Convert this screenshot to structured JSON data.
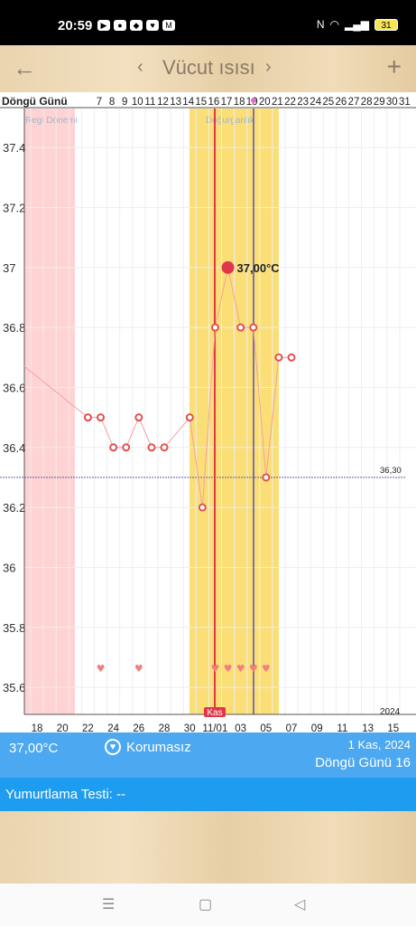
{
  "status": {
    "time": "20:59",
    "battery": "31"
  },
  "header": {
    "title": "Vücut ısısı",
    "back_icon": "arrow-left-icon",
    "add_icon": "plus-icon"
  },
  "chart_data": {
    "type": "line",
    "cycle_label": "Döngü Günü",
    "cycle_days": [
      "7",
      "8",
      "9",
      "10",
      "11",
      "12",
      "13",
      "14",
      "15",
      "16",
      "17",
      "18",
      "19",
      "20",
      "21",
      "22",
      "23",
      "24",
      "25",
      "26",
      "27",
      "28",
      "29",
      "30",
      "31"
    ],
    "y_ticks": [
      "37.4",
      "37.2",
      "37",
      "36.8",
      "36.6",
      "36.4",
      "36.2",
      "36",
      "35.8",
      "35.6"
    ],
    "ylim": [
      35.54,
      37.5
    ],
    "x_ticks": [
      "18",
      "20",
      "22",
      "24",
      "26",
      "28",
      "30",
      "11/01",
      "03",
      "05",
      "07",
      "09",
      "11",
      "13",
      "15"
    ],
    "period_label": "Regl Dönemi",
    "fertile_label": "Doğurganlık",
    "month_label": "Kas",
    "year_label": "2024",
    "coverline": 36.3,
    "coverline_label": "36,30",
    "selected_label": "37,00°C",
    "points": [
      {
        "d": 22,
        "t": 36.5
      },
      {
        "d": 23,
        "t": 36.5
      },
      {
        "d": 24,
        "t": 36.4
      },
      {
        "d": 25,
        "t": 36.4
      },
      {
        "d": 26,
        "t": 36.5
      },
      {
        "d": 27,
        "t": 36.4
      },
      {
        "d": 28,
        "t": 36.4
      },
      {
        "d": 30,
        "t": 36.5
      },
      {
        "d": 31,
        "t": 36.2
      },
      {
        "d": 32,
        "t": 36.8
      },
      {
        "d": 33,
        "t": 37.0
      },
      {
        "d": 34,
        "t": 36.8
      },
      {
        "d": 35,
        "t": 36.8
      },
      {
        "d": 36,
        "t": 36.3
      },
      {
        "d": 37,
        "t": 36.7
      },
      {
        "d": 38,
        "t": 36.7
      }
    ],
    "hearts": [
      23,
      26,
      32,
      33,
      34,
      35,
      36
    ],
    "colors": {
      "period": "#ffd3d3",
      "fertile": "#fbdf76",
      "line": "#f4a0a0",
      "point": "#e05050",
      "today": "#5a4fb0",
      "selected": "#e0354a"
    }
  },
  "info": {
    "temp": "37,00°C",
    "protection": "Korumasız",
    "heart_icon": "heart-icon",
    "date": "1 Kas, 2024",
    "cycle": "Döngü Günü 16"
  },
  "ovulation": {
    "label": "Yumurtlama Testi: --"
  }
}
